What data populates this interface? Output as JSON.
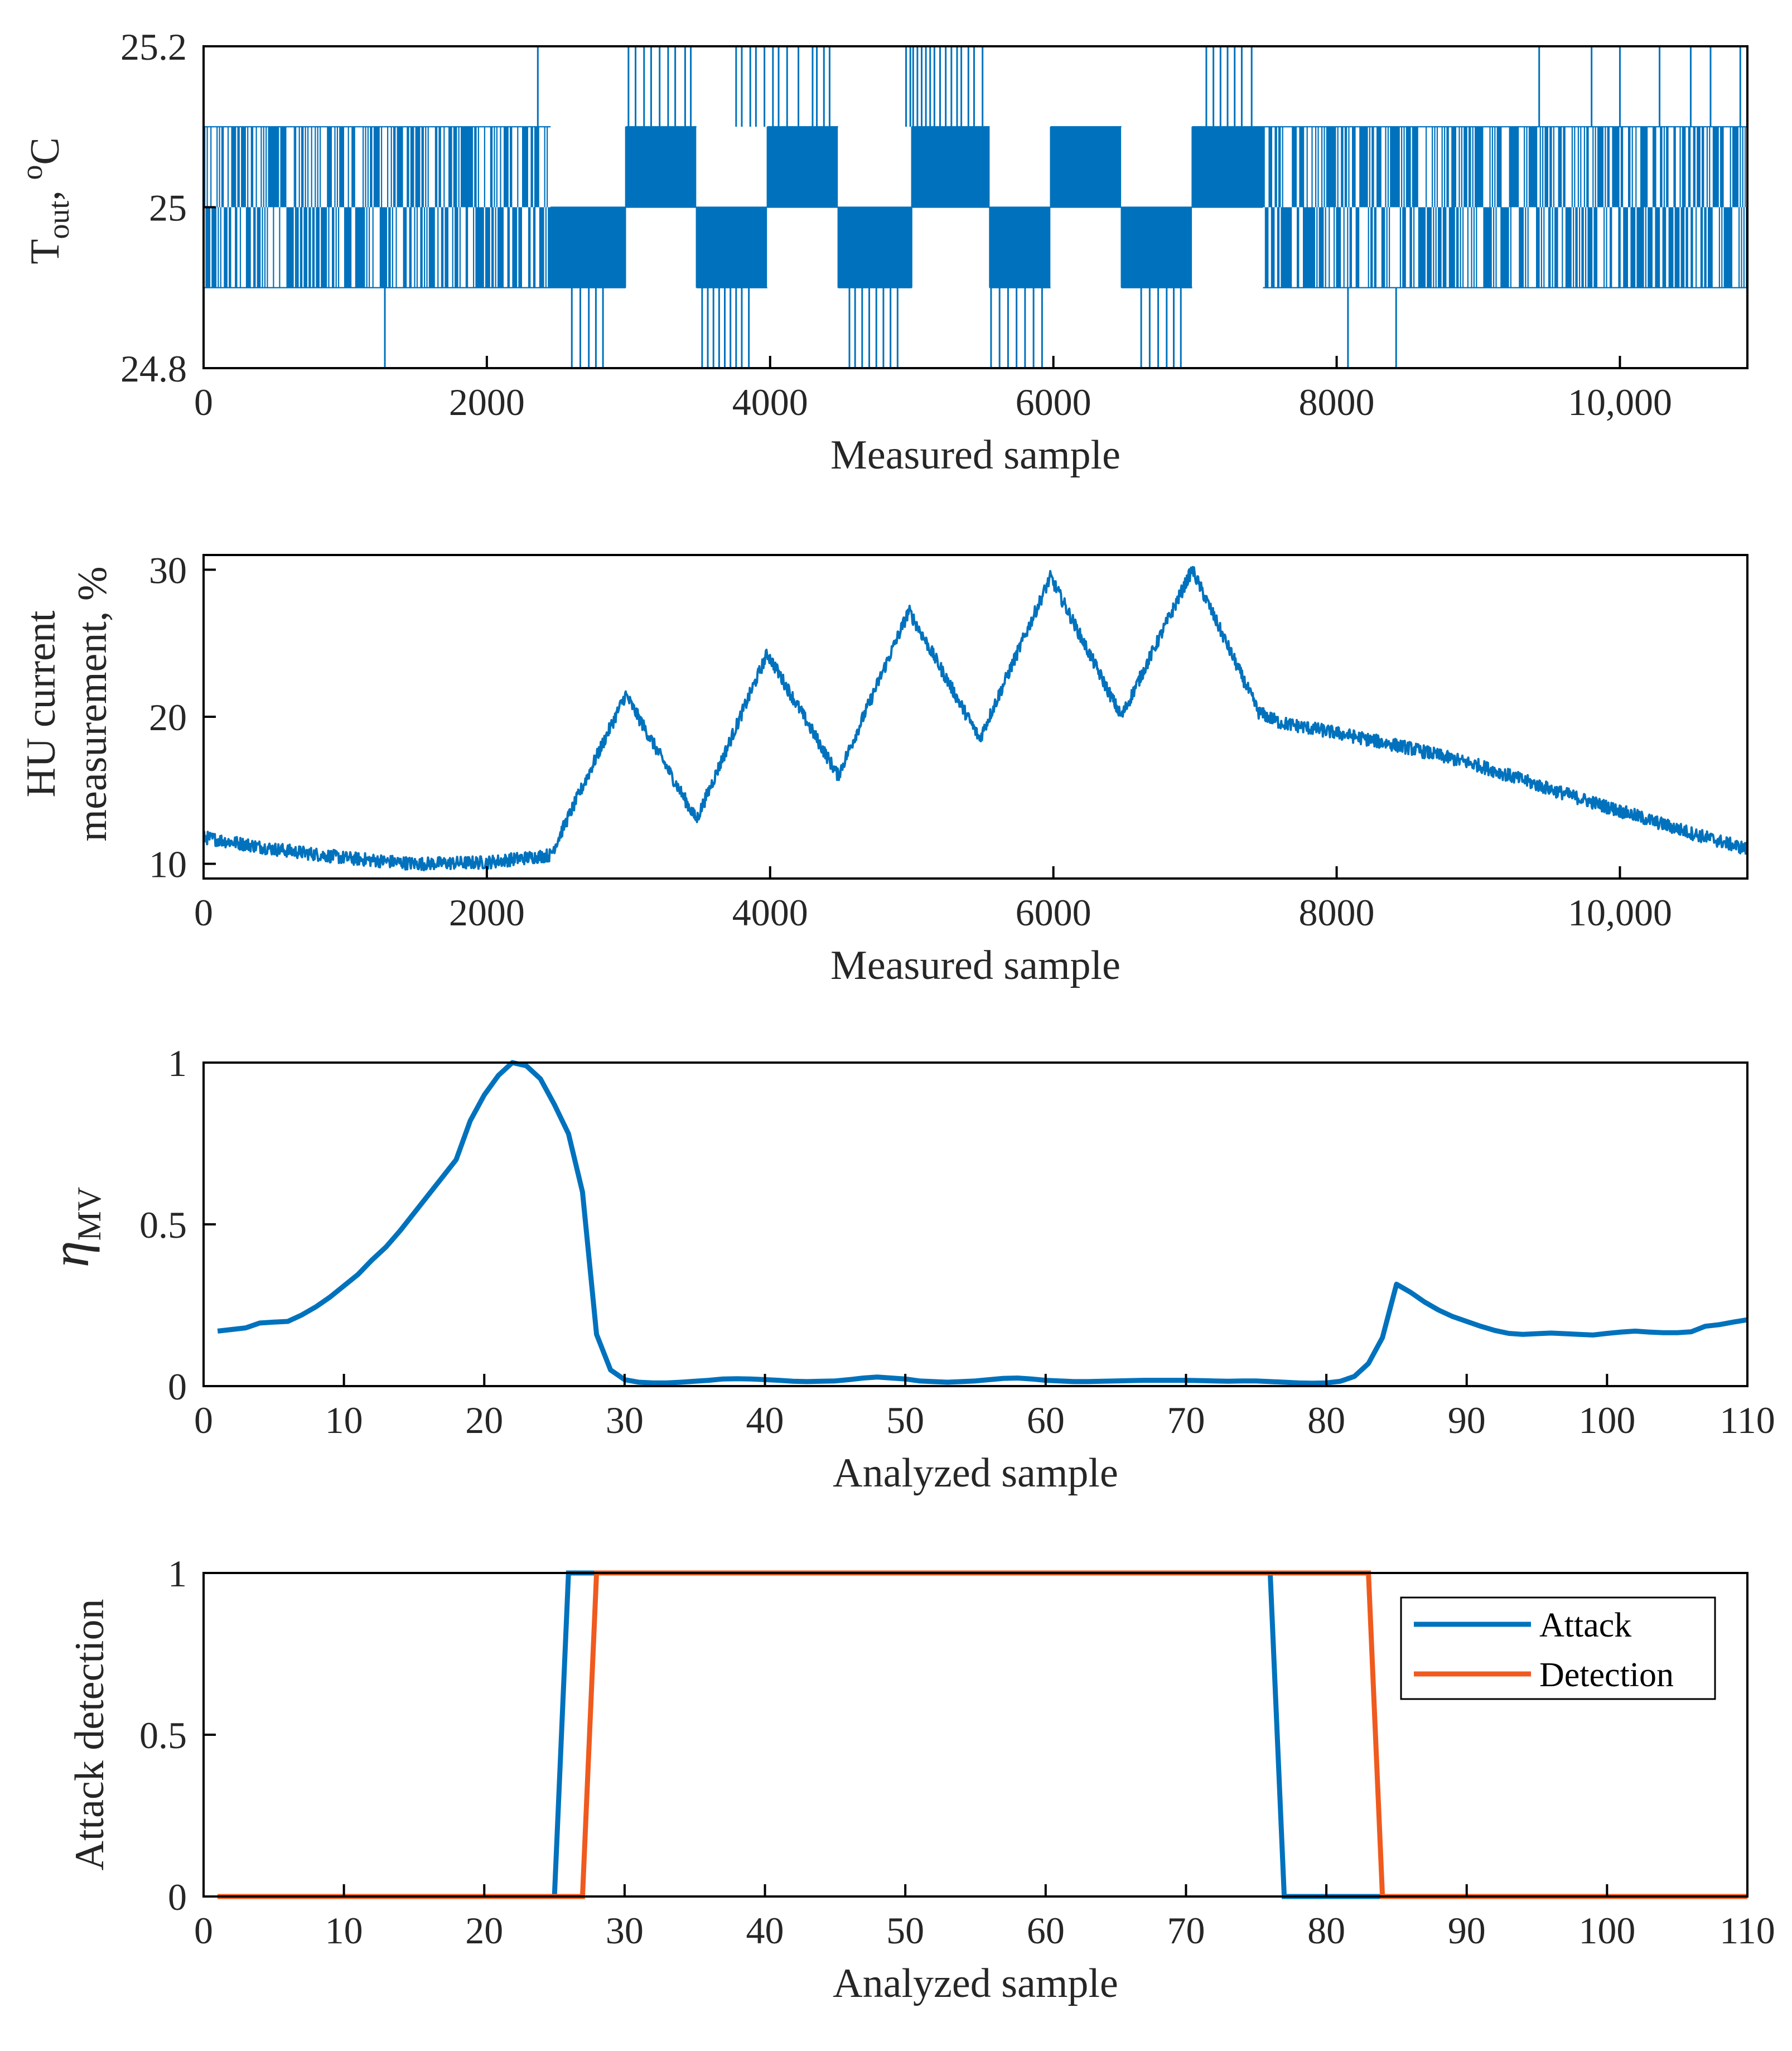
{
  "colors": {
    "blue": "#0072BD",
    "orange": "#F05A1E"
  },
  "chart_data": [
    {
      "type": "line",
      "id": "tout",
      "xlabel": "Measured sample",
      "ylabel_main": "T",
      "ylabel_sub": "out",
      "ylabel_suffix": ", ",
      "ylabel_sup": "o",
      "ylabel_unit": "C",
      "xlim": [
        0,
        10900
      ],
      "ylim": [
        24.8,
        25.2
      ],
      "xticks": [
        0,
        2000,
        4000,
        6000,
        8000,
        10000
      ],
      "xtick_labels": [
        "0",
        "2000",
        "4000",
        "6000",
        "8000",
        "10,000"
      ],
      "yticks": [
        24.8,
        25,
        25.2
      ],
      "ytick_labels": [
        "24.8",
        "25",
        "25.2"
      ],
      "levels": [
        24.8,
        24.9,
        25.0,
        25.1,
        25.2
      ],
      "segments": [
        {
          "x0": 0,
          "x1": 650,
          "lo": 24.9,
          "hi": 25.1
        },
        {
          "x0": 650,
          "x1": 2450,
          "lo": 24.9,
          "hi": 25.1
        },
        {
          "x0": 2450,
          "x1": 2980,
          "lo": 24.9,
          "hi": 25.0
        },
        {
          "x0": 2980,
          "x1": 3480,
          "lo": 25.0,
          "hi": 25.1
        },
        {
          "x0": 3480,
          "x1": 3980,
          "lo": 24.9,
          "hi": 25.0
        },
        {
          "x0": 3980,
          "x1": 4480,
          "lo": 25.0,
          "hi": 25.1
        },
        {
          "x0": 4480,
          "x1": 5000,
          "lo": 24.9,
          "hi": 25.0
        },
        {
          "x0": 5000,
          "x1": 5550,
          "lo": 25.0,
          "hi": 25.1
        },
        {
          "x0": 5550,
          "x1": 5980,
          "lo": 24.9,
          "hi": 25.0
        },
        {
          "x0": 5980,
          "x1": 6480,
          "lo": 25.0,
          "hi": 25.1
        },
        {
          "x0": 6480,
          "x1": 6980,
          "lo": 24.9,
          "hi": 25.0
        },
        {
          "x0": 6980,
          "x1": 7480,
          "lo": 25.0,
          "hi": 25.1
        },
        {
          "x0": 7480,
          "x1": 10900,
          "lo": 24.9,
          "hi": 25.1
        }
      ],
      "spikes_up": [
        2360,
        3000,
        3050,
        3110,
        3160,
        3220,
        3280,
        3330,
        3400,
        3440,
        3760,
        3800,
        3860,
        3900,
        3960,
        4020,
        4060,
        4120,
        4200,
        4300,
        4330,
        4380,
        4420,
        4960,
        4990,
        5010,
        5040,
        5070,
        5100,
        5130,
        5160,
        5200,
        5240,
        5280,
        5320,
        5350,
        5400,
        5440,
        5500,
        7080,
        7130,
        7180,
        7230,
        7280,
        7330,
        7400,
        9430,
        9800,
        10000,
        10280,
        10500,
        10640,
        10850
      ],
      "spikes_down": [
        1280,
        2600,
        2660,
        2720,
        2770,
        2820,
        3520,
        3560,
        3600,
        3640,
        3680,
        3720,
        3760,
        3800,
        3850,
        4560,
        4600,
        4650,
        4700,
        4750,
        4800,
        4850,
        4900,
        5560,
        5620,
        5680,
        5740,
        5800,
        5860,
        5920,
        6620,
        6680,
        6740,
        6800,
        6850,
        6900,
        8080,
        8420
      ]
    },
    {
      "type": "line",
      "id": "hu",
      "xlabel": "Measured sample",
      "ylabel_line1": "HU current",
      "ylabel_line2": "measurement, %",
      "xlim": [
        0,
        10900
      ],
      "ylim": [
        9,
        31
      ],
      "xticks": [
        0,
        2000,
        4000,
        6000,
        8000,
        10000
      ],
      "xtick_labels": [
        "0",
        "2000",
        "4000",
        "6000",
        "8000",
        "10,000"
      ],
      "yticks": [
        10,
        20,
        30
      ],
      "ytick_labels": [
        "10",
        "20",
        "30"
      ],
      "x": [
        0,
        500,
        1000,
        1500,
        2000,
        2450,
        2980,
        3480,
        3980,
        4480,
        4980,
        5480,
        5980,
        6480,
        6980,
        7450,
        7600,
        8000,
        8500,
        9000,
        9500,
        10000,
        10500,
        10900
      ],
      "y": [
        11.8,
        11.0,
        10.4,
        10.0,
        10.1,
        10.6,
        21.5,
        13.0,
        24.3,
        16.0,
        27.2,
        18.5,
        29.5,
        20.0,
        30.0,
        20.3,
        19.6,
        18.9,
        17.9,
        16.7,
        15.1,
        13.6,
        12.1,
        11.0
      ],
      "noise": 0.45
    },
    {
      "type": "line",
      "id": "eta",
      "xlabel": "Analyzed sample",
      "ylabel_main": "η",
      "ylabel_sub": "MV",
      "xlim": [
        0,
        110
      ],
      "ylim": [
        0,
        1
      ],
      "xticks": [
        0,
        10,
        20,
        30,
        40,
        50,
        60,
        70,
        80,
        90,
        100,
        110
      ],
      "xtick_labels": [
        "0",
        "10",
        "20",
        "30",
        "40",
        "50",
        "60",
        "70",
        "80",
        "90",
        "100",
        "110"
      ],
      "yticks": [
        0,
        0.5,
        1
      ],
      "ytick_labels": [
        "0",
        "0.5",
        "1"
      ],
      "x": [
        1,
        2,
        3,
        4,
        5,
        6,
        7,
        8,
        9,
        10,
        11,
        12,
        13,
        14,
        15,
        16,
        17,
        18,
        19,
        20,
        21,
        22,
        23,
        24,
        25,
        26,
        27,
        28,
        29,
        30,
        31,
        32,
        33,
        34,
        35,
        36,
        37,
        38,
        39,
        40,
        41,
        42,
        43,
        44,
        45,
        46,
        47,
        48,
        49,
        50,
        51,
        52,
        53,
        54,
        55,
        56,
        57,
        58,
        59,
        60,
        61,
        62,
        63,
        64,
        65,
        66,
        67,
        68,
        69,
        70,
        71,
        72,
        73,
        74,
        75,
        76,
        77,
        78,
        79,
        80,
        81,
        82,
        83,
        84,
        85,
        86,
        87,
        88,
        89,
        90,
        91,
        92,
        93,
        94,
        95,
        96,
        97,
        98,
        99,
        100,
        101,
        102,
        103,
        104,
        105,
        106,
        107,
        108,
        109,
        110
      ],
      "y": [
        0.17,
        0.175,
        0.18,
        0.195,
        0.198,
        0.2,
        0.22,
        0.245,
        0.275,
        0.31,
        0.345,
        0.39,
        0.43,
        0.48,
        0.535,
        0.59,
        0.645,
        0.7,
        0.82,
        0.9,
        0.96,
        1.0,
        0.99,
        0.95,
        0.87,
        0.78,
        0.6,
        0.16,
        0.05,
        0.02,
        0.012,
        0.01,
        0.01,
        0.012,
        0.015,
        0.018,
        0.022,
        0.023,
        0.022,
        0.02,
        0.018,
        0.015,
        0.014,
        0.015,
        0.016,
        0.02,
        0.025,
        0.028,
        0.025,
        0.022,
        0.016,
        0.014,
        0.012,
        0.014,
        0.016,
        0.02,
        0.024,
        0.025,
        0.022,
        0.018,
        0.016,
        0.014,
        0.014,
        0.015,
        0.016,
        0.017,
        0.018,
        0.018,
        0.018,
        0.018,
        0.017,
        0.016,
        0.015,
        0.016,
        0.016,
        0.014,
        0.012,
        0.01,
        0.009,
        0.01,
        0.015,
        0.03,
        0.07,
        0.15,
        0.315,
        0.29,
        0.26,
        0.235,
        0.215,
        0.2,
        0.185,
        0.172,
        0.163,
        0.16,
        0.162,
        0.164,
        0.162,
        0.16,
        0.158,
        0.163,
        0.167,
        0.17,
        0.167,
        0.165,
        0.165,
        0.168,
        0.185,
        0.19,
        0.198,
        0.205
      ]
    },
    {
      "type": "line",
      "id": "attack",
      "xlabel": "Analyzed sample",
      "ylabel": "Attack detection",
      "xlim": [
        0,
        110
      ],
      "ylim": [
        0,
        1
      ],
      "xticks": [
        0,
        10,
        20,
        30,
        40,
        50,
        60,
        70,
        80,
        90,
        100,
        110
      ],
      "xtick_labels": [
        "0",
        "10",
        "20",
        "30",
        "40",
        "50",
        "60",
        "70",
        "80",
        "90",
        "100",
        "110"
      ],
      "yticks": [
        0,
        0.5,
        1
      ],
      "ytick_labels": [
        "0",
        "0.5",
        "1"
      ],
      "legend_position": "top-right",
      "series": [
        {
          "name": "Attack",
          "x": [
            1,
            25,
            26,
            76,
            77,
            110
          ],
          "y": [
            0,
            0,
            1,
            1,
            0,
            0
          ]
        },
        {
          "name": "Detection",
          "x": [
            1,
            27,
            28,
            83,
            84,
            110
          ],
          "y": [
            0,
            0,
            1,
            1,
            0,
            0
          ]
        }
      ]
    }
  ]
}
